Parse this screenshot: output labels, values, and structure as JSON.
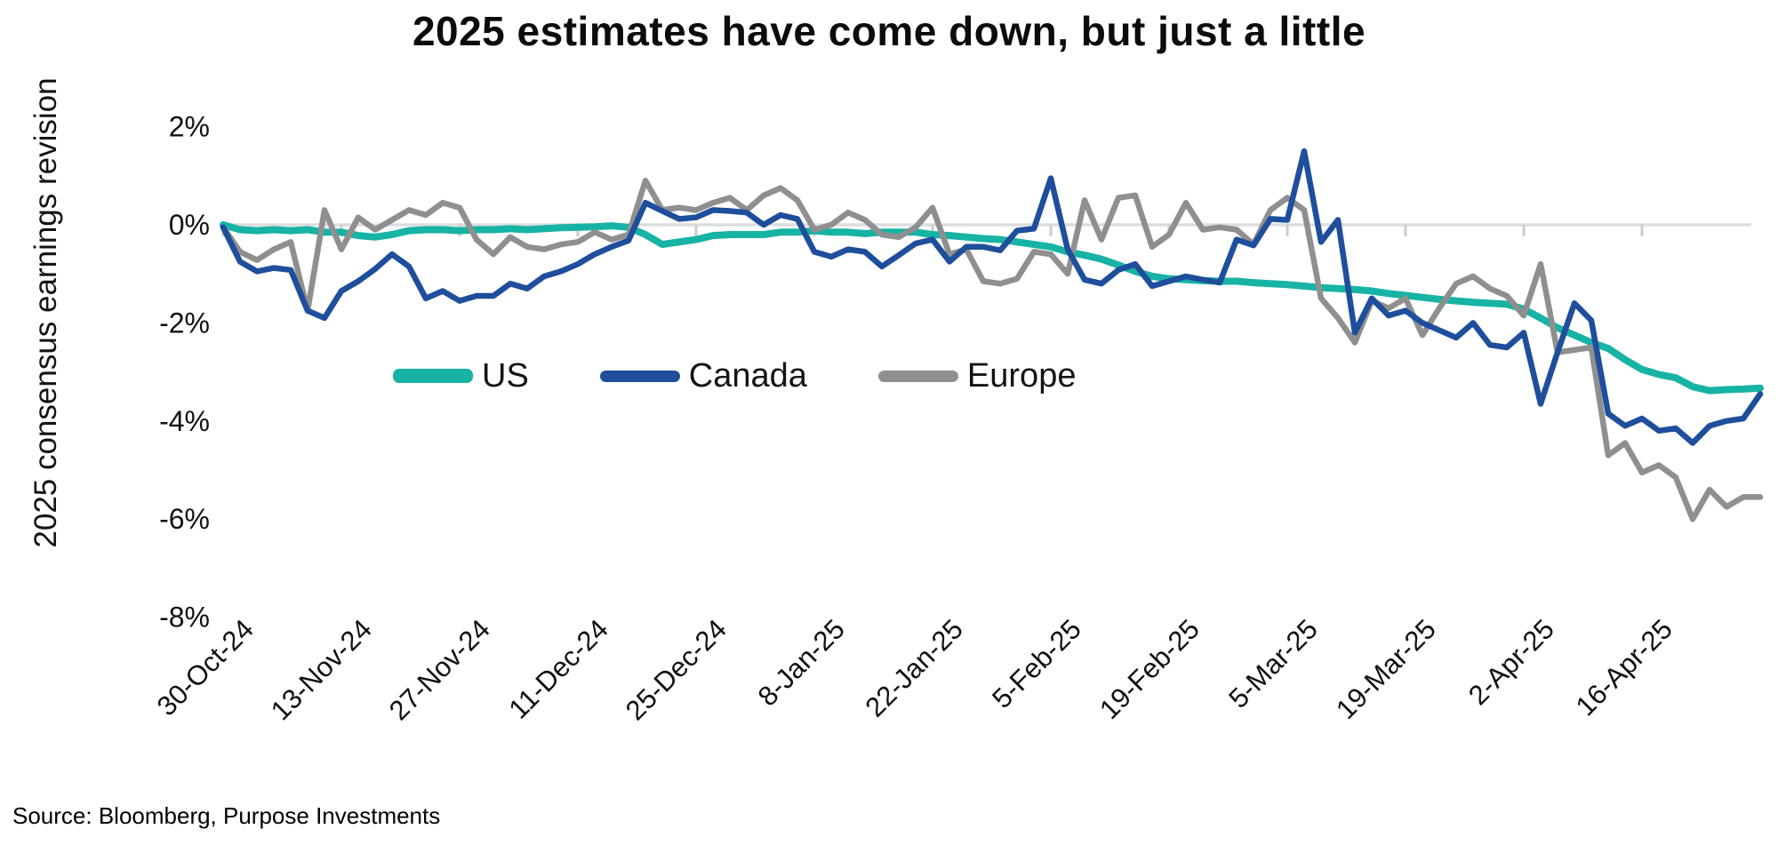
{
  "title": "2025 estimates have come down, but just a little",
  "source": "Source: Bloomberg, Purpose Investments",
  "y_axis": {
    "label": "2025 consensus earnings revision",
    "ticks": [
      "2%",
      "0%",
      "-2%",
      "-4%",
      "-6%",
      "-8%"
    ],
    "tick_values": [
      2,
      0,
      -2,
      -4,
      -6,
      -8
    ]
  },
  "x_axis": {
    "tick_labels": [
      "30-Oct-24",
      "13-Nov-24",
      "27-Nov-24",
      "11-Dec-24",
      "25-Dec-24",
      "8-Jan-25",
      "22-Jan-25",
      "5-Feb-25",
      "19-Feb-25",
      "5-Mar-25",
      "19-Mar-25",
      "2-Apr-25",
      "16-Apr-25"
    ]
  },
  "legend": [
    {
      "label": "US",
      "color": "#17B3A4"
    },
    {
      "label": "Canada",
      "color": "#1E4E9C"
    },
    {
      "label": "Europe",
      "color": "#8F8F8F"
    }
  ],
  "colors": {
    "us": "#17B3A4",
    "canada": "#1E4E9C",
    "europe": "#8F8F8F",
    "zero_line": "#DCDDDF",
    "tick_mark": "#C9CBCD",
    "text": "#111111"
  },
  "chart_data": {
    "type": "line",
    "title": "2025 estimates have come down, but just a little",
    "ylabel": "2025 consensus earnings revision",
    "unit": "%",
    "ylim": [
      -8,
      2
    ],
    "grid": "horizontal zero-line only",
    "legend_position": "inside-left, mid-chart",
    "x": [
      "30-Oct-24",
      "1-Nov-24",
      "3-Nov-24",
      "5-Nov-24",
      "7-Nov-24",
      "9-Nov-24",
      "11-Nov-24",
      "13-Nov-24",
      "15-Nov-24",
      "17-Nov-24",
      "19-Nov-24",
      "21-Nov-24",
      "23-Nov-24",
      "25-Nov-24",
      "27-Nov-24",
      "29-Nov-24",
      "1-Dec-24",
      "3-Dec-24",
      "5-Dec-24",
      "7-Dec-24",
      "9-Dec-24",
      "11-Dec-24",
      "13-Dec-24",
      "15-Dec-24",
      "17-Dec-24",
      "19-Dec-24",
      "21-Dec-24",
      "23-Dec-24",
      "25-Dec-24",
      "27-Dec-24",
      "29-Dec-24",
      "31-Dec-24",
      "2-Jan-25",
      "4-Jan-25",
      "6-Jan-25",
      "8-Jan-25",
      "10-Jan-25",
      "12-Jan-25",
      "14-Jan-25",
      "16-Jan-25",
      "18-Jan-25",
      "20-Jan-25",
      "22-Jan-25",
      "24-Jan-25",
      "26-Jan-25",
      "28-Jan-25",
      "30-Jan-25",
      "1-Feb-25",
      "3-Feb-25",
      "5-Feb-25",
      "7-Feb-25",
      "9-Feb-25",
      "11-Feb-25",
      "13-Feb-25",
      "15-Feb-25",
      "17-Feb-25",
      "19-Feb-25",
      "21-Feb-25",
      "23-Feb-25",
      "25-Feb-25",
      "27-Feb-25",
      "1-Mar-25",
      "3-Mar-25",
      "5-Mar-25",
      "7-Mar-25",
      "9-Mar-25",
      "11-Mar-25",
      "13-Mar-25",
      "15-Mar-25",
      "17-Mar-25",
      "19-Mar-25",
      "21-Mar-25",
      "23-Mar-25",
      "25-Mar-25",
      "27-Mar-25",
      "29-Mar-25",
      "31-Mar-25",
      "2-Apr-25",
      "4-Apr-25",
      "6-Apr-25",
      "8-Apr-25",
      "10-Apr-25",
      "12-Apr-25",
      "14-Apr-25",
      "16-Apr-25",
      "18-Apr-25",
      "20-Apr-25",
      "22-Apr-25",
      "24-Apr-25",
      "26-Apr-25",
      "28-Apr-25",
      "30-Apr-25"
    ],
    "series": [
      {
        "name": "US",
        "color": "#17B3A4",
        "values": [
          0.0,
          -0.1,
          -0.12,
          -0.1,
          -0.12,
          -0.1,
          -0.15,
          -0.15,
          -0.22,
          -0.25,
          -0.2,
          -0.12,
          -0.1,
          -0.1,
          -0.12,
          -0.1,
          -0.1,
          -0.08,
          -0.1,
          -0.08,
          -0.06,
          -0.05,
          -0.04,
          -0.02,
          -0.05,
          -0.2,
          -0.4,
          -0.35,
          -0.3,
          -0.22,
          -0.2,
          -0.2,
          -0.2,
          -0.15,
          -0.15,
          -0.12,
          -0.15,
          -0.15,
          -0.18,
          -0.15,
          -0.15,
          -0.15,
          -0.2,
          -0.22,
          -0.25,
          -0.28,
          -0.3,
          -0.35,
          -0.4,
          -0.45,
          -0.55,
          -0.62,
          -0.7,
          -0.82,
          -0.95,
          -1.05,
          -1.1,
          -1.12,
          -1.14,
          -1.15,
          -1.15,
          -1.18,
          -1.2,
          -1.22,
          -1.25,
          -1.28,
          -1.3,
          -1.32,
          -1.35,
          -1.4,
          -1.44,
          -1.48,
          -1.52,
          -1.55,
          -1.58,
          -1.6,
          -1.62,
          -1.72,
          -1.9,
          -2.1,
          -2.25,
          -2.4,
          -2.52,
          -2.75,
          -2.95,
          -3.05,
          -3.12,
          -3.3,
          -3.38,
          -3.36,
          -3.35,
          -3.33
        ]
      },
      {
        "name": "Canada",
        "color": "#1E4E9C",
        "values": [
          -0.05,
          -0.75,
          -0.95,
          -0.88,
          -0.92,
          -1.75,
          -1.9,
          -1.35,
          -1.15,
          -0.9,
          -0.6,
          -0.85,
          -1.5,
          -1.35,
          -1.55,
          -1.45,
          -1.45,
          -1.2,
          -1.3,
          -1.05,
          -0.95,
          -0.8,
          -0.6,
          -0.45,
          -0.32,
          0.45,
          0.28,
          0.12,
          0.15,
          0.3,
          0.28,
          0.25,
          0.0,
          0.2,
          0.12,
          -0.55,
          -0.65,
          -0.5,
          -0.55,
          -0.85,
          -0.62,
          -0.38,
          -0.3,
          -0.75,
          -0.45,
          -0.45,
          -0.52,
          -0.12,
          -0.08,
          0.95,
          -0.5,
          -1.12,
          -1.2,
          -0.92,
          -0.8,
          -1.25,
          -1.15,
          -1.05,
          -1.12,
          -1.18,
          -0.3,
          -0.42,
          0.12,
          0.1,
          1.5,
          -0.35,
          0.1,
          -2.2,
          -1.5,
          -1.85,
          -1.75,
          -2.0,
          -2.15,
          -2.3,
          -2.0,
          -2.45,
          -2.5,
          -2.2,
          -3.65,
          -2.6,
          -1.6,
          -1.95,
          -3.85,
          -4.1,
          -3.95,
          -4.2,
          -4.15,
          -4.45,
          -4.1,
          -4.0,
          -3.95,
          -3.45
        ]
      },
      {
        "name": "Europe",
        "color": "#8F8F8F",
        "values": [
          -0.05,
          -0.55,
          -0.72,
          -0.5,
          -0.35,
          -1.75,
          0.3,
          -0.5,
          0.15,
          -0.1,
          0.1,
          0.3,
          0.2,
          0.45,
          0.35,
          -0.3,
          -0.6,
          -0.25,
          -0.45,
          -0.5,
          -0.4,
          -0.35,
          -0.15,
          -0.3,
          -0.2,
          0.9,
          0.3,
          0.35,
          0.3,
          0.45,
          0.55,
          0.3,
          0.6,
          0.75,
          0.5,
          -0.1,
          0.0,
          0.25,
          0.1,
          -0.2,
          -0.25,
          -0.05,
          0.35,
          -0.6,
          -0.5,
          -1.15,
          -1.2,
          -1.1,
          -0.55,
          -0.6,
          -1.0,
          0.5,
          -0.3,
          0.55,
          0.6,
          -0.45,
          -0.2,
          0.45,
          -0.1,
          -0.05,
          -0.1,
          -0.4,
          0.3,
          0.55,
          0.3,
          -1.5,
          -1.9,
          -2.4,
          -1.55,
          -1.7,
          -1.5,
          -2.25,
          -1.7,
          -1.2,
          -1.05,
          -1.3,
          -1.45,
          -1.85,
          -0.8,
          -2.6,
          -2.55,
          -2.5,
          -4.7,
          -4.45,
          -5.05,
          -4.9,
          -5.15,
          -6.0,
          -5.4,
          -5.75,
          -5.55,
          -5.55
        ]
      }
    ]
  }
}
